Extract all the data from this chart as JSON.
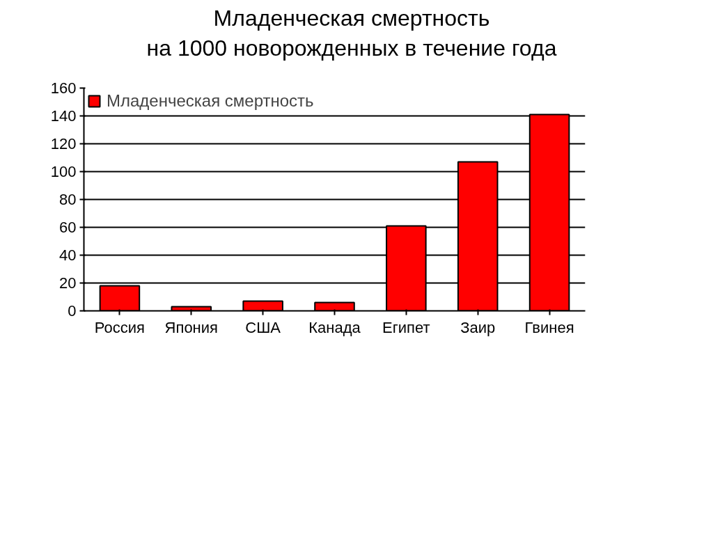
{
  "chart_data": {
    "type": "bar",
    "title": "Младенческая смертность\nна 1000 новорожденных в течение года",
    "categories": [
      "Россия",
      "Япония",
      "США",
      "Канада",
      "Египет",
      "Заир",
      "Гвинея"
    ],
    "series": [
      {
        "name": "Младенческая смертность",
        "color": "#ff0000",
        "values": [
          18,
          3,
          7,
          6,
          61,
          107,
          141
        ]
      }
    ],
    "ylim": [
      0,
      160
    ],
    "yticks": [
      0,
      20,
      40,
      60,
      80,
      100,
      120,
      140,
      160
    ],
    "grid": "y",
    "legend": "top left"
  }
}
